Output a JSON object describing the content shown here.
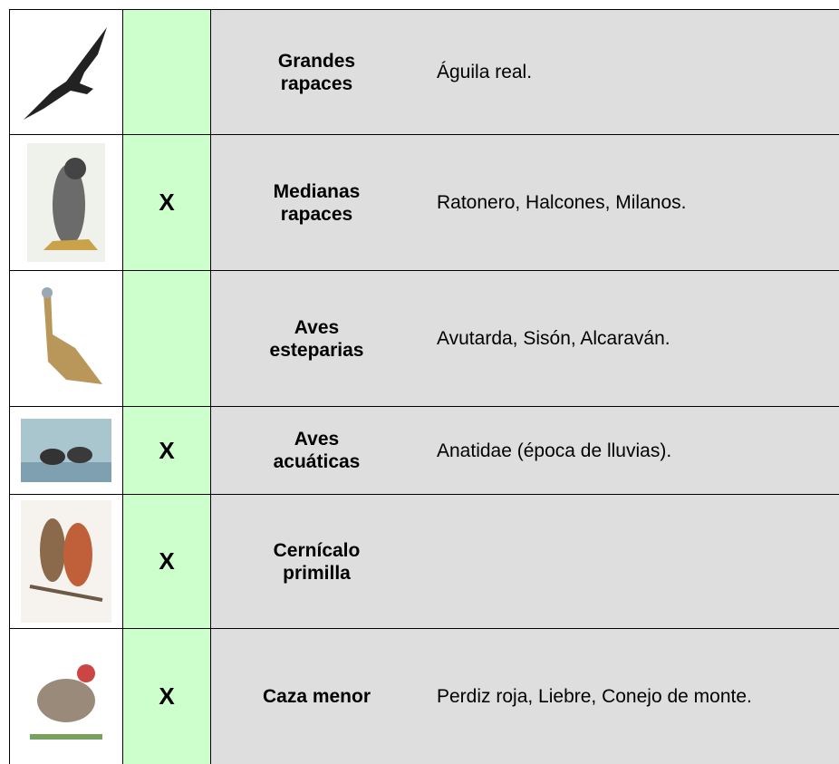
{
  "table": {
    "rows": [
      {
        "group": "Grandes rapaces",
        "species": "Águila real."
      },
      {
        "mark": "X",
        "group": "Medianas rapaces",
        "species": "Ratonero, Halcones, Milanos."
      },
      {
        "group": "Aves esteparias",
        "species": "Avutarda, Sisón, Alcaraván."
      },
      {
        "mark": "X",
        "group": "Aves acuáticas",
        "species": "Anatidae (época de lluvias)."
      },
      {
        "mark": "X",
        "group": "Cernícalo primilla"
      },
      {
        "mark": "X",
        "group": "Caza menor",
        "species": "Perdiz roja, Liebre, Conejo de monte."
      }
    ]
  }
}
